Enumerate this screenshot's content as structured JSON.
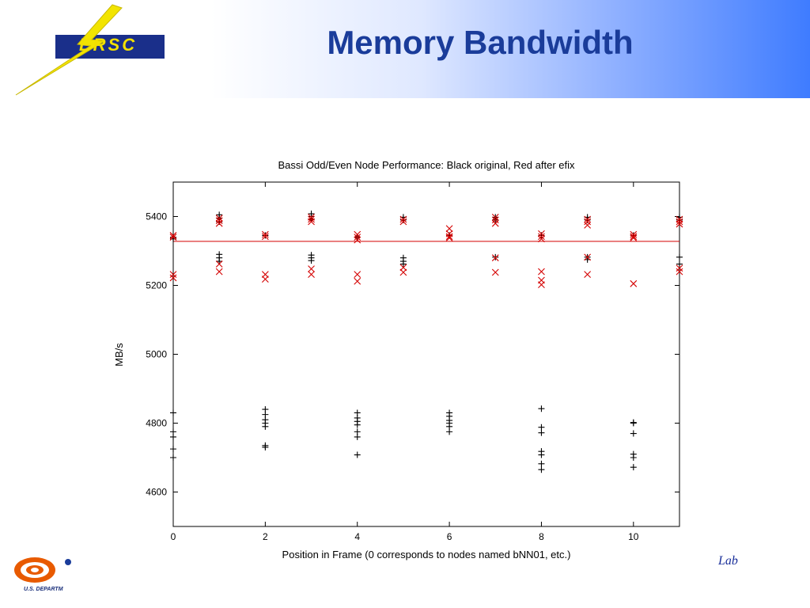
{
  "slide": {
    "title": "Memory Bandwidth",
    "logo_text": "ERSC",
    "footer_lab": "Lab",
    "footer_doe": "U.S. DEPARTM"
  },
  "colors": {
    "title": "#1a3c9a",
    "header_gradient_end": "#3f7cff",
    "original_series": "#000000",
    "after_series": "#d40000"
  },
  "chart_data": {
    "type": "scatter",
    "title": "Bassi Odd/Even Node Performance: Black original, Red after efix",
    "xlabel": "Position in Frame (0 corresponds to nodes named bNN01, etc.)",
    "ylabel": "MB/s",
    "xlim": [
      0,
      11
    ],
    "ylim": [
      4500,
      5500
    ],
    "xticks": [
      0,
      2,
      4,
      6,
      8,
      10
    ],
    "yticks": [
      4600,
      4800,
      5000,
      5200,
      5400
    ],
    "grid": false,
    "reference_line": {
      "y": 5328,
      "color": "#d40000"
    },
    "series": [
      {
        "marker": "plus",
        "color": "#000000",
        "points": [
          [
            0,
            4830
          ],
          [
            0,
            4775
          ],
          [
            0,
            4760
          ],
          [
            0,
            4725
          ],
          [
            0,
            4700
          ],
          [
            0,
            5340
          ],
          [
            0,
            5335
          ],
          [
            1,
            5405
          ],
          [
            1,
            5395
          ],
          [
            1,
            5385
          ],
          [
            1,
            5290
          ],
          [
            1,
            5280
          ],
          [
            1,
            5270
          ],
          [
            2,
            4840
          ],
          [
            2,
            4825
          ],
          [
            2,
            4810
          ],
          [
            2,
            4800
          ],
          [
            2,
            4790
          ],
          [
            2,
            4735
          ],
          [
            2,
            4730
          ],
          [
            2,
            5345
          ],
          [
            3,
            5408
          ],
          [
            3,
            5400
          ],
          [
            3,
            5392
          ],
          [
            3,
            5288
          ],
          [
            3,
            5280
          ],
          [
            3,
            5272
          ],
          [
            4,
            4830
          ],
          [
            4,
            4815
          ],
          [
            4,
            4805
          ],
          [
            4,
            4795
          ],
          [
            4,
            4775
          ],
          [
            4,
            4760
          ],
          [
            4,
            4708
          ],
          [
            4,
            5340
          ],
          [
            5,
            5398
          ],
          [
            5,
            5390
          ],
          [
            5,
            5280
          ],
          [
            5,
            5270
          ],
          [
            5,
            5262
          ],
          [
            6,
            4830
          ],
          [
            6,
            4820
          ],
          [
            6,
            4808
          ],
          [
            6,
            4800
          ],
          [
            6,
            4790
          ],
          [
            6,
            4775
          ],
          [
            6,
            5345
          ],
          [
            7,
            5398
          ],
          [
            7,
            5390
          ],
          [
            7,
            5282
          ],
          [
            8,
            4842
          ],
          [
            8,
            4788
          ],
          [
            8,
            4772
          ],
          [
            8,
            4718
          ],
          [
            8,
            4708
          ],
          [
            8,
            4682
          ],
          [
            8,
            4665
          ],
          [
            8,
            5345
          ],
          [
            9,
            5398
          ],
          [
            9,
            5390
          ],
          [
            9,
            5282
          ],
          [
            9,
            5275
          ],
          [
            10,
            4802
          ],
          [
            10,
            4800
          ],
          [
            10,
            4770
          ],
          [
            10,
            4710
          ],
          [
            10,
            4700
          ],
          [
            10,
            4672
          ],
          [
            10,
            5345
          ],
          [
            11,
            5398
          ],
          [
            11,
            5390
          ],
          [
            11,
            5282
          ],
          [
            11,
            5262
          ]
        ]
      },
      {
        "marker": "x",
        "color": "#d40000",
        "points": [
          [
            0,
            5345
          ],
          [
            0,
            5340
          ],
          [
            0,
            5232
          ],
          [
            0,
            5222
          ],
          [
            1,
            5395
          ],
          [
            1,
            5388
          ],
          [
            1,
            5380
          ],
          [
            1,
            5262
          ],
          [
            1,
            5240
          ],
          [
            2,
            5348
          ],
          [
            2,
            5342
          ],
          [
            2,
            5232
          ],
          [
            2,
            5218
          ],
          [
            3,
            5398
          ],
          [
            3,
            5392
          ],
          [
            3,
            5385
          ],
          [
            3,
            5248
          ],
          [
            3,
            5232
          ],
          [
            4,
            5348
          ],
          [
            4,
            5340
          ],
          [
            4,
            5332
          ],
          [
            4,
            5232
          ],
          [
            4,
            5212
          ],
          [
            5,
            5392
          ],
          [
            5,
            5385
          ],
          [
            5,
            5252
          ],
          [
            5,
            5238
          ],
          [
            6,
            5365
          ],
          [
            6,
            5350
          ],
          [
            6,
            5342
          ],
          [
            6,
            5338
          ],
          [
            7,
            5398
          ],
          [
            7,
            5390
          ],
          [
            7,
            5380
          ],
          [
            7,
            5280
          ],
          [
            7,
            5238
          ],
          [
            8,
            5350
          ],
          [
            8,
            5342
          ],
          [
            8,
            5335
          ],
          [
            8,
            5240
          ],
          [
            8,
            5215
          ],
          [
            8,
            5202
          ],
          [
            9,
            5392
          ],
          [
            9,
            5385
          ],
          [
            9,
            5375
          ],
          [
            9,
            5282
          ],
          [
            9,
            5232
          ],
          [
            10,
            5348
          ],
          [
            10,
            5342
          ],
          [
            10,
            5338
          ],
          [
            10,
            5205
          ],
          [
            11,
            5392
          ],
          [
            11,
            5385
          ],
          [
            11,
            5378
          ],
          [
            11,
            5250
          ],
          [
            11,
            5240
          ]
        ]
      }
    ]
  }
}
